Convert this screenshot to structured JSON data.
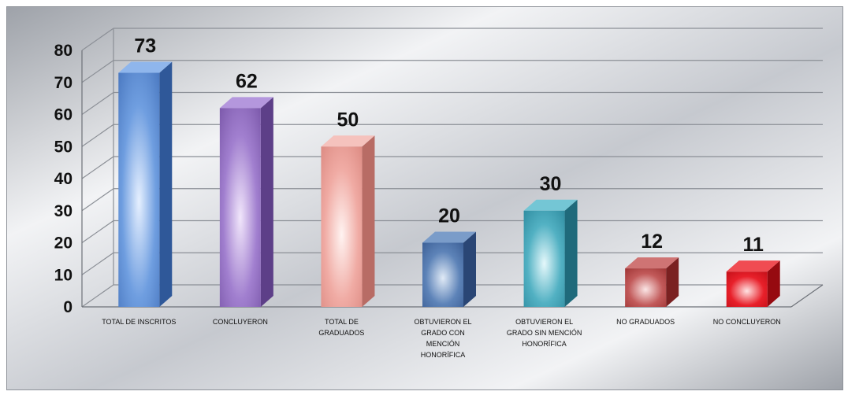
{
  "chart_data": {
    "type": "bar",
    "style": "3d-column",
    "categories": [
      [
        "TOTAL DE INSCRITOS"
      ],
      [
        "CONCLUYERON"
      ],
      [
        "TOTAL DE",
        "GRADUADOS"
      ],
      [
        "OBTUVIERON EL",
        "GRADO CON",
        "MENCIÓN",
        "HONORÍFICA"
      ],
      [
        "OBTUVIERON EL",
        "GRADO SIN MENCIÓN",
        "HONORÍFICA"
      ],
      [
        "NO GRADUADOS"
      ],
      [
        "NO CONCLUYERON"
      ]
    ],
    "values": [
      73,
      62,
      50,
      20,
      30,
      12,
      11
    ],
    "data_labels": [
      "73",
      "62",
      "50",
      "20",
      "30",
      "12",
      "11"
    ],
    "ylim": [
      0,
      80
    ],
    "yticks": [
      "0",
      "10",
      "20",
      "30",
      "40",
      "50",
      "60",
      "70",
      "80"
    ],
    "grid": true,
    "legend": "none",
    "bar_colors": [
      {
        "light": "#e6f0ff",
        "mid": "#6f9ee0",
        "dark": "#4a78c0",
        "side": "#2f5899",
        "top": "#8fb6ec"
      },
      {
        "light": "#f1e6fb",
        "mid": "#a17fcf",
        "dark": "#7b58aa",
        "side": "#5d3f88",
        "top": "#b497dd"
      },
      {
        "light": "#fff3f1",
        "mid": "#f0aba4",
        "dark": "#dc8a82",
        "side": "#b86c65",
        "top": "#f5c2bd"
      },
      {
        "light": "#e0eaf6",
        "mid": "#5d83b8",
        "dark": "#3c5f96",
        "side": "#2a4675",
        "top": "#7a9cc9"
      },
      {
        "light": "#e5f8fb",
        "mid": "#52b1c3",
        "dark": "#2f8ca0",
        "side": "#1f6a7b",
        "top": "#74c6d5"
      },
      {
        "light": "#fbe5e5",
        "mid": "#c25a5a",
        "dark": "#9e3434",
        "side": "#7a2121",
        "top": "#cf7474"
      },
      {
        "light": "#ffe3e3",
        "mid": "#e8202a",
        "dark": "#c30f18",
        "side": "#960a10",
        "top": "#f04c52"
      }
    ],
    "background": {
      "light": "#f2f3f5",
      "mid": "#c6c9cf",
      "dark": "#9ea2a9"
    }
  }
}
